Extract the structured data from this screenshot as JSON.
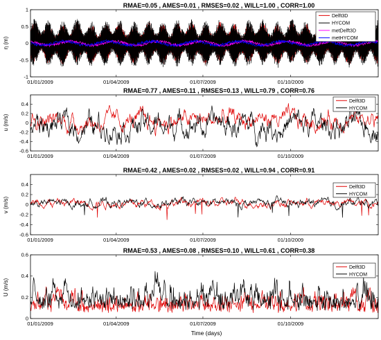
{
  "xlabel": "Time (days)",
  "date_ticks": [
    "01/01/2009",
    "01/04/2009",
    "01/07/2009",
    "01/10/2009"
  ],
  "chart_data": [
    {
      "type": "line",
      "title": "RMAE=0.05  ,  AMES=0.01  ,  RMSES=0.02  ,  WILL=1.00  ,  CORR=1.00",
      "ylabel": "η (m)",
      "ylim": [
        -1,
        1
      ],
      "yticks": [
        "1",
        "0.5",
        "0",
        "-0.5",
        "-1"
      ],
      "yticks_values": [
        1,
        0.5,
        0,
        -0.5,
        -1
      ],
      "xlim": [
        "2009-01-01",
        "2009-12-31"
      ],
      "legend_position": "top-right",
      "series": [
        {
          "name": "Delft3D",
          "color": "#e00000",
          "style": "tidal",
          "amplitude_range": [
            0.25,
            0.6
          ]
        },
        {
          "name": "HYCOM",
          "color": "#000000",
          "style": "tidal",
          "amplitude_range": [
            0.3,
            0.7
          ]
        },
        {
          "name": "metDelft3D",
          "color": "#ff00ff",
          "style": "residual",
          "amplitude_range": [
            0.0,
            0.15
          ]
        },
        {
          "name": "metHYCOM",
          "color": "#0000ff",
          "style": "residual",
          "amplitude_range": [
            0.0,
            0.15
          ]
        }
      ]
    },
    {
      "type": "line",
      "title": "RMAE=0.77  ,  AMES=0.11  ,  RMSES=0.13  ,  WILL=0.79  ,  CORR=0.76",
      "ylabel": "u (m/s)",
      "ylim": [
        -0.6,
        0.6
      ],
      "yticks": [
        "0.4",
        "0.2",
        "0",
        "-0.2",
        "-0.4",
        "-0.6"
      ],
      "yticks_values": [
        0.4,
        0.2,
        0,
        -0.2,
        -0.4,
        -0.6
      ],
      "xlim": [
        "2009-01-01",
        "2009-12-31"
      ],
      "legend_position": "top-right",
      "series": [
        {
          "name": "Delft3D",
          "color": "#e00000",
          "style": "noisy",
          "mean": 0.05,
          "spread": 0.12
        },
        {
          "name": "HYCOM",
          "color": "#000000",
          "style": "noisy",
          "mean": -0.05,
          "spread": 0.17
        }
      ]
    },
    {
      "type": "line",
      "title": "RMAE=0.42  ,  AMES=0.02  ,  RMSES=0.02  ,  WILL=0.94  ,  CORR=0.91",
      "ylabel": "v (m/s)",
      "ylim": [
        -0.6,
        0.6
      ],
      "yticks": [
        "0.4",
        "0.2",
        "0",
        "-0.2",
        "-0.4",
        "-0.6"
      ],
      "yticks_values": [
        0.4,
        0.2,
        0,
        -0.2,
        -0.4,
        -0.6
      ],
      "xlim": [
        "2009-01-01",
        "2009-12-31"
      ],
      "legend_position": "top-right",
      "series": [
        {
          "name": "Delft3D",
          "color": "#e00000",
          "style": "noisy",
          "mean": 0.03,
          "spread": 0.05
        },
        {
          "name": "HYCOM",
          "color": "#000000",
          "style": "noisy",
          "mean": 0.03,
          "spread": 0.05
        }
      ]
    },
    {
      "type": "line",
      "title": "RMAE=0.53  ,  AMES=0.08  ,  RMSES=0.10  ,  WILL=0.61  ,  CORR=0.38",
      "ylabel": "U (m/s)",
      "ylim": [
        0,
        0.6
      ],
      "yticks": [
        "0.6",
        "0.4",
        "0.2",
        "0"
      ],
      "yticks_values": [
        0.6,
        0.4,
        0.2,
        0
      ],
      "xlim": [
        "2009-01-01",
        "2009-12-31"
      ],
      "legend_position": "top-right",
      "series": [
        {
          "name": "Delft3D",
          "color": "#e00000",
          "style": "positive",
          "mean": 0.12,
          "spread": 0.08
        },
        {
          "name": "HYCOM",
          "color": "#000000",
          "style": "positive",
          "mean": 0.16,
          "spread": 0.1
        }
      ]
    }
  ]
}
